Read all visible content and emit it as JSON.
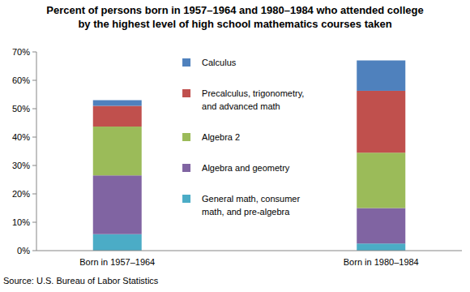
{
  "chart_data": {
    "type": "bar",
    "stacked": true,
    "title": "Percent of persons born in 1957–1964 and 1980–1984 who attended college\nby the highest level of high school mathematics courses taken",
    "source": "Source: U.S. Bureau of Labor Statistics",
    "categories": [
      "Born in 1957–1964",
      "Born in 1980–1984"
    ],
    "series": [
      {
        "name": "General math, consumer math, and pre-algebra",
        "color": "#4bacc6",
        "values": [
          5.8,
          2.5
        ]
      },
      {
        "name": "Algebra and geometry",
        "color": "#8064a2",
        "values": [
          20.7,
          12.5
        ]
      },
      {
        "name": "Algebra 2",
        "color": "#9bbb59",
        "values": [
          17.2,
          19.5
        ]
      },
      {
        "name": "Precalculus, trigonometry, and advanced math",
        "color": "#c0504d",
        "values": [
          7.3,
          21.8
        ]
      },
      {
        "name": "Calculus",
        "color": "#4f81bd",
        "values": [
          2.0,
          10.7
        ]
      }
    ],
    "ylim": [
      0,
      70
    ],
    "yticks": [
      {
        "value": 0,
        "label": "0%"
      },
      {
        "value": 10,
        "label": "10%"
      },
      {
        "value": 20,
        "label": "20%"
      },
      {
        "value": 30,
        "label": "30%"
      },
      {
        "value": 40,
        "label": "40%"
      },
      {
        "value": 50,
        "label": "50%"
      },
      {
        "value": 60,
        "label": "60%"
      },
      {
        "value": 70,
        "label": "70%"
      }
    ],
    "grid": false,
    "legend": "center"
  }
}
